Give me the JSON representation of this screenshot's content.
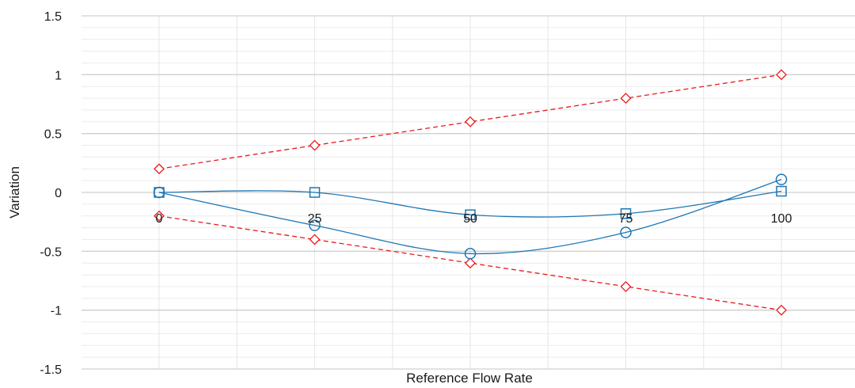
{
  "chart_data": {
    "type": "line",
    "title": "",
    "xlabel": "Reference Flow Rate",
    "ylabel": "Variation",
    "x": [
      0,
      25,
      50,
      75,
      100
    ],
    "x_tick_labels": [
      "0",
      "25",
      "50",
      "75",
      "100"
    ],
    "ylim": [
      -1.5,
      1.5
    ],
    "y_major_ticks": [
      -1.5,
      -1,
      -0.5,
      0,
      0.5,
      1,
      1.5
    ],
    "y_tick_labels": [
      "-1.5",
      "-1",
      "-0.5",
      "0",
      "0.5",
      "1",
      "1.5"
    ],
    "grid": true,
    "legend": "none",
    "series": [
      {
        "values": [
          0.2,
          0.4,
          0.6,
          0.8,
          1.0
        ],
        "color": "#e8191a",
        "marker": "diamond",
        "line": "dashed"
      },
      {
        "values": [
          -0.2,
          -0.4,
          -0.6,
          -0.8,
          -1.0
        ],
        "color": "#e8191a",
        "marker": "diamond",
        "line": "dashed"
      },
      {
        "values": [
          0.0,
          0.0,
          -0.19,
          -0.18,
          0.01
        ],
        "color": "#1f77b4",
        "marker": "square",
        "line": "smooth"
      },
      {
        "values": [
          0.0,
          -0.28,
          -0.52,
          -0.34,
          0.11
        ],
        "color": "#1f77b4",
        "marker": "circle",
        "line": "smooth"
      }
    ]
  }
}
